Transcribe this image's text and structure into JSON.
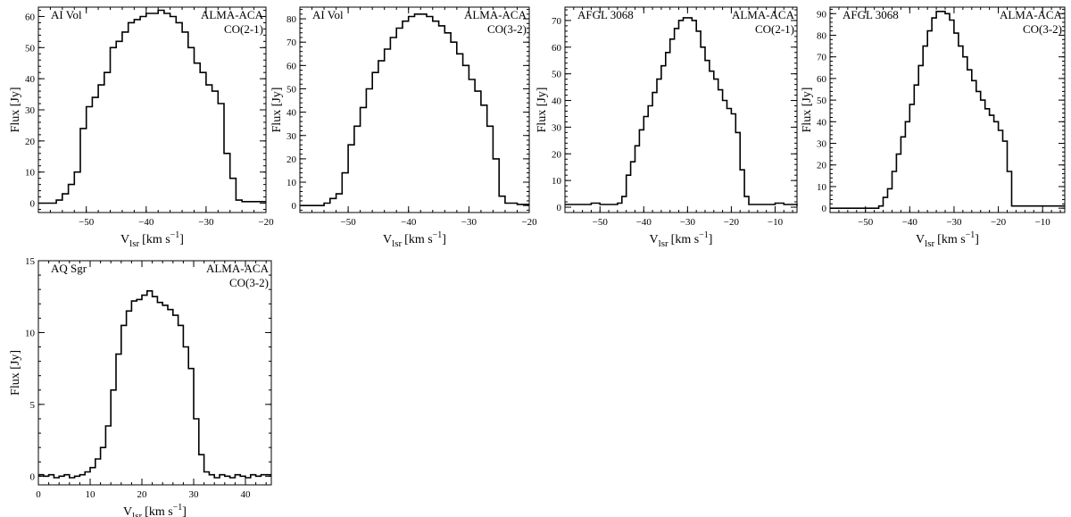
{
  "figure": {
    "xlabel_main": "V",
    "xlabel_sub": "lsr",
    "xlabel_unit": "[km s",
    "xlabel_exp": "−1",
    "xlabel_close": "]",
    "ylabel": "Flux [Jy]"
  },
  "chart_data": [
    {
      "type": "line",
      "step": true,
      "source": "AI Vol",
      "instrument": "ALMA-ACA",
      "line": "CO(2-1)",
      "xlabel": "Vlsr [km s−1]",
      "ylabel": "Flux [Jy]",
      "xlim": [
        -58,
        -20
      ],
      "ylim": [
        -3,
        63
      ],
      "xticks": [
        -50,
        -40,
        -30,
        -20
      ],
      "yticks": [
        0,
        10,
        20,
        30,
        40,
        50,
        60
      ],
      "x": [
        -58,
        -56,
        -55,
        -54,
        -53,
        -52,
        -51,
        -50,
        -49,
        -48,
        -47,
        -46,
        -45,
        -44,
        -43,
        -42,
        -41,
        -40,
        -39,
        -38,
        -37,
        -36,
        -35,
        -34,
        -33,
        -32,
        -31,
        -30,
        -29,
        -28,
        -27,
        -26,
        -25,
        -24,
        -22,
        -20
      ],
      "y": [
        0,
        0,
        1,
        3,
        6,
        10,
        24,
        31,
        34,
        38,
        42,
        50,
        52,
        55,
        58,
        59,
        60,
        61,
        61,
        62,
        61,
        60,
        58,
        55,
        50,
        45,
        42,
        38,
        36,
        32,
        16,
        8,
        1,
        0.5,
        0.5,
        0.5
      ]
    },
    {
      "type": "line",
      "step": true,
      "source": "AI Vol",
      "instrument": "ALMA-ACA",
      "line": "CO(3-2)",
      "xlabel": "Vlsr [km s−1]",
      "ylabel": "Flux [Jy]",
      "xlim": [
        -58,
        -20
      ],
      "ylim": [
        -3,
        85
      ],
      "xticks": [
        -50,
        -40,
        -30,
        -20
      ],
      "yticks": [
        0,
        10,
        20,
        30,
        40,
        50,
        60,
        70,
        80
      ],
      "x": [
        -58,
        -56,
        -54,
        -53,
        -52,
        -51,
        -50,
        -49,
        -48,
        -47,
        -46,
        -45,
        -44,
        -43,
        -42,
        -41,
        -40,
        -39,
        -38,
        -37,
        -36,
        -35,
        -34,
        -33,
        -32,
        -31,
        -30,
        -29,
        -28,
        -27,
        -26,
        -25,
        -24,
        -22,
        -20
      ],
      "y": [
        0,
        0,
        1,
        3,
        5,
        14,
        26,
        34,
        42,
        50,
        57,
        62,
        67,
        72,
        76,
        79,
        81,
        82,
        82,
        81,
        79,
        77,
        74,
        70,
        65,
        60,
        54,
        49,
        43,
        34,
        20,
        4,
        1,
        0.5,
        0.5
      ]
    },
    {
      "type": "line",
      "step": true,
      "source": "AFGL 3068",
      "instrument": "ALMA-ACA",
      "line": "CO(2-1)",
      "xlabel": "Vlsr [km s−1]",
      "ylabel": "Flux [Jy]",
      "xlim": [
        -58,
        -5
      ],
      "ylim": [
        -2,
        75
      ],
      "xticks": [
        -50,
        -40,
        -30,
        -20,
        -10
      ],
      "yticks": [
        0,
        10,
        20,
        30,
        40,
        50,
        60,
        70
      ],
      "x": [
        -58,
        -55,
        -52,
        -50,
        -48,
        -46,
        -45,
        -44,
        -43,
        -42,
        -41,
        -40,
        -39,
        -38,
        -37,
        -36,
        -35,
        -34,
        -33,
        -32,
        -31,
        -30,
        -29,
        -28,
        -27,
        -26,
        -25,
        -24,
        -23,
        -22,
        -21,
        -20,
        -19,
        -18,
        -17,
        -16,
        -13,
        -10,
        -8,
        -5
      ],
      "y": [
        1,
        1,
        1.5,
        1,
        1,
        1.5,
        4,
        12,
        17,
        23,
        29,
        34,
        38,
        43,
        48,
        53,
        58,
        63,
        67,
        70,
        71,
        71,
        70,
        66,
        60,
        55,
        51,
        48,
        44,
        40,
        37,
        35,
        28,
        14,
        4,
        1,
        1,
        1.5,
        1,
        0.5
      ]
    },
    {
      "type": "line",
      "step": true,
      "source": "AFGL 3068",
      "instrument": "ALMA-ACA",
      "line": "CO(3-2)",
      "xlabel": "Vlsr [km s−1]",
      "ylabel": "Flux [Jy]",
      "xlim": [
        -58,
        -5
      ],
      "ylim": [
        -2,
        93
      ],
      "xticks": [
        -50,
        -40,
        -30,
        -20,
        -10
      ],
      "yticks": [
        0,
        10,
        20,
        30,
        40,
        50,
        60,
        70,
        80,
        90
      ],
      "x": [
        -58,
        -55,
        -50,
        -47,
        -46,
        -45,
        -44,
        -43,
        -42,
        -41,
        -40,
        -39,
        -38,
        -37,
        -36,
        -35,
        -34,
        -33,
        -32,
        -31,
        -30,
        -29,
        -28,
        -27,
        -26,
        -25,
        -24,
        -23,
        -22,
        -21,
        -20,
        -19,
        -18,
        -17,
        -16,
        -12,
        -8,
        -5
      ],
      "y": [
        0,
        0,
        0,
        1,
        5,
        9,
        17,
        25,
        33,
        40,
        48,
        57,
        66,
        75,
        82,
        88,
        91,
        91,
        90,
        87,
        81,
        75,
        70,
        64,
        59,
        54,
        50,
        46,
        43,
        40,
        36,
        31,
        17,
        1,
        1,
        1,
        1,
        1
      ]
    },
    {
      "type": "line",
      "step": true,
      "source": "AQ Sgr",
      "instrument": "ALMA-ACA",
      "line": "CO(3-2)",
      "xlabel": "Vlsr [km s−1]",
      "ylabel": "Flux [Jy]",
      "xlim": [
        0,
        45
      ],
      "ylim": [
        -0.6,
        15
      ],
      "xticks": [
        0,
        10,
        20,
        30,
        40
      ],
      "yticks": [
        0,
        5,
        10,
        15
      ],
      "x": [
        0,
        1,
        2,
        3,
        4,
        5,
        6,
        7,
        8,
        9,
        10,
        11,
        12,
        13,
        14,
        15,
        16,
        17,
        18,
        19,
        20,
        21,
        22,
        23,
        24,
        25,
        26,
        27,
        28,
        29,
        30,
        31,
        32,
        33,
        34,
        35,
        36,
        37,
        38,
        39,
        40,
        41,
        42,
        43,
        44,
        45
      ],
      "y": [
        0.1,
        0,
        0.1,
        -0.1,
        0,
        0.1,
        -0.1,
        0,
        0.1,
        0.3,
        0.6,
        1.2,
        2,
        3.5,
        6,
        8.5,
        10.5,
        11.5,
        12.2,
        12.3,
        12.6,
        12.9,
        12.5,
        12.1,
        11.9,
        11.6,
        11.2,
        10.5,
        9,
        7.5,
        4,
        1.5,
        0.3,
        0.1,
        -0.1,
        0.1,
        0,
        -0.1,
        0.1,
        0,
        -0.1,
        0.1,
        0,
        0.1,
        0.1,
        0.1
      ]
    }
  ]
}
